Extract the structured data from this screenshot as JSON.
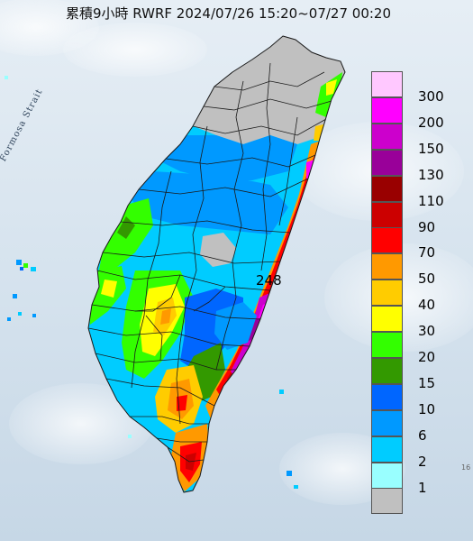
{
  "map": {
    "title": "累積9小時 RWRF 2024/07/26 15:20~07/27 00:20",
    "strait_label": "Formosa Strait",
    "peak_value": "248",
    "corner_mark": "16"
  },
  "legend": [
    {
      "label": "300",
      "color": "#ffc8ff"
    },
    {
      "label": "200",
      "color": "#ff00ff"
    },
    {
      "label": "150",
      "color": "#cc00cc"
    },
    {
      "label": "130",
      "color": "#990099"
    },
    {
      "label": "110",
      "color": "#990000"
    },
    {
      "label": "90",
      "color": "#cc0000"
    },
    {
      "label": "70",
      "color": "#ff0000"
    },
    {
      "label": "50",
      "color": "#ff9900"
    },
    {
      "label": "40",
      "color": "#ffcc00"
    },
    {
      "label": "30",
      "color": "#ffff00"
    },
    {
      "label": "20",
      "color": "#33ff00"
    },
    {
      "label": "15",
      "color": "#339900"
    },
    {
      "label": "10",
      "color": "#0066ff"
    },
    {
      "label": "6",
      "color": "#0099ff"
    },
    {
      "label": "2",
      "color": "#00ccff"
    },
    {
      "label": "1",
      "color": "#99ffff"
    },
    {
      "label": "",
      "color": "#c0c0c0"
    }
  ]
}
